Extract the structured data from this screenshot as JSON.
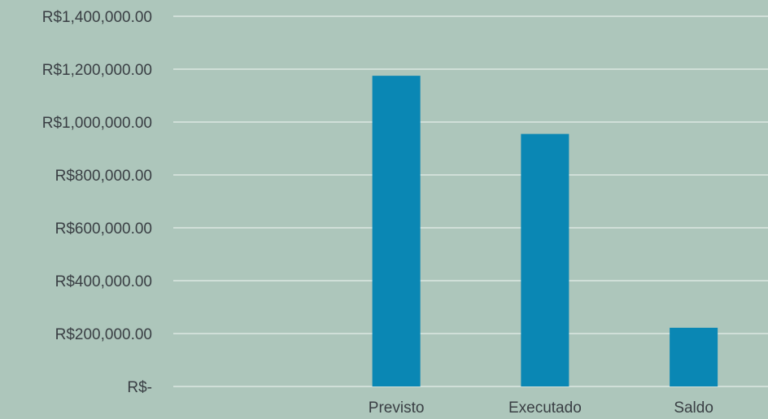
{
  "chart_data": {
    "type": "bar",
    "title": "",
    "xlabel": "",
    "ylabel": "",
    "categories": [
      "",
      "Previsto",
      "Executado",
      "Saldo"
    ],
    "values": [
      0,
      1175000,
      955000,
      222000
    ],
    "ylim": [
      0,
      1400000
    ],
    "yticks": [
      0,
      200000,
      400000,
      600000,
      800000,
      1000000,
      1200000,
      1400000
    ],
    "ytick_labels": [
      "R$-",
      "R$200,000.00",
      "R$400,000.00",
      "R$600,000.00",
      "R$800,000.00",
      "R$1,000,000.00",
      "R$1,200,000.00",
      "R$1,400,000.00"
    ],
    "grid": true,
    "legend": "none",
    "colors": {
      "background": "#adc6bb",
      "bar": "#0a87b4",
      "gridline": "#dbe7e1",
      "text": "#3a3f44"
    }
  }
}
